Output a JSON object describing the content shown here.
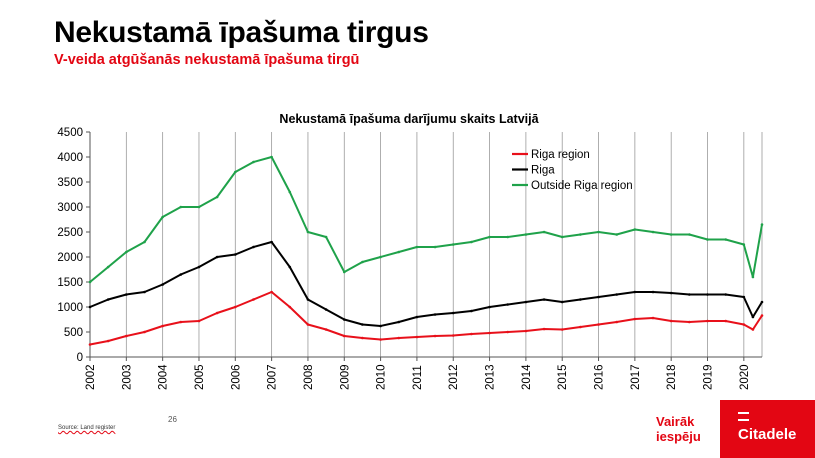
{
  "slide": {
    "title": "Nekustamā īpašuma tirgus",
    "subtitle": "V-veida atgūšanās nekustamā īpašuma tirgū",
    "source": "Source: Land register",
    "page_number": "26",
    "slogan_line1": "Vairāk",
    "slogan_line2": "iespēju",
    "brand_name": "Citadele"
  },
  "colors": {
    "riga_region": "#e8101a",
    "riga": "#000000",
    "outside_riga": "#1fa24a",
    "accent": "#e30613",
    "gridline": "#9a9a9a"
  },
  "chart_data": {
    "type": "line",
    "title": "Nekustamā īpašuma darījumu skaits Latvijā",
    "xlabel": "",
    "ylabel": "",
    "xlim": [
      2002,
      2020.5
    ],
    "ylim": [
      0,
      4500
    ],
    "x_ticks": [
      "2002",
      "2003",
      "2004",
      "2005",
      "2006",
      "2007",
      "2008",
      "2009",
      "2010",
      "2011",
      "2012",
      "2013",
      "2014",
      "2015",
      "2016",
      "2017",
      "2018",
      "2019",
      "2020"
    ],
    "y_ticks": [
      "0",
      "500",
      "1000",
      "1500",
      "2000",
      "2500",
      "3000",
      "3500",
      "4000",
      "4500"
    ],
    "grid": "vertical",
    "legend_position": "top-right",
    "x": [
      2002,
      2002.5,
      2003,
      2003.5,
      2004,
      2004.5,
      2005,
      2005.5,
      2006,
      2006.5,
      2007,
      2007.5,
      2008,
      2008.5,
      2009,
      2009.5,
      2010,
      2010.5,
      2011,
      2011.5,
      2012,
      2012.5,
      2013,
      2013.5,
      2014,
      2014.5,
      2015,
      2015.5,
      2016,
      2016.5,
      2017,
      2017.5,
      2018,
      2018.5,
      2019,
      2019.5,
      2020,
      2020.25,
      2020.5
    ],
    "series": [
      {
        "name": "Riga region",
        "color_key": "riga_region",
        "values": [
          250,
          320,
          420,
          500,
          620,
          700,
          720,
          880,
          1000,
          1150,
          1300,
          1000,
          650,
          550,
          420,
          380,
          350,
          380,
          400,
          420,
          430,
          460,
          480,
          500,
          520,
          560,
          550,
          600,
          650,
          700,
          760,
          780,
          720,
          700,
          720,
          720,
          650,
          550,
          830
        ]
      },
      {
        "name": "Riga",
        "color_key": "riga",
        "values": [
          1000,
          1150,
          1250,
          1300,
          1450,
          1650,
          1800,
          2000,
          2050,
          2200,
          2300,
          1800,
          1150,
          950,
          750,
          650,
          620,
          700,
          800,
          850,
          880,
          920,
          1000,
          1050,
          1100,
          1150,
          1100,
          1150,
          1200,
          1250,
          1300,
          1300,
          1280,
          1250,
          1250,
          1250,
          1200,
          800,
          1100
        ]
      },
      {
        "name": "Outside Riga region",
        "color_key": "outside_riga",
        "values": [
          1500,
          1800,
          2100,
          2300,
          2800,
          3000,
          3000,
          3200,
          3700,
          3900,
          4000,
          3300,
          2500,
          2400,
          1700,
          1900,
          2000,
          2100,
          2200,
          2200,
          2250,
          2300,
          2400,
          2400,
          2450,
          2500,
          2400,
          2450,
          2500,
          2450,
          2550,
          2500,
          2450,
          2450,
          2350,
          2350,
          2250,
          1600,
          2650
        ]
      }
    ]
  }
}
